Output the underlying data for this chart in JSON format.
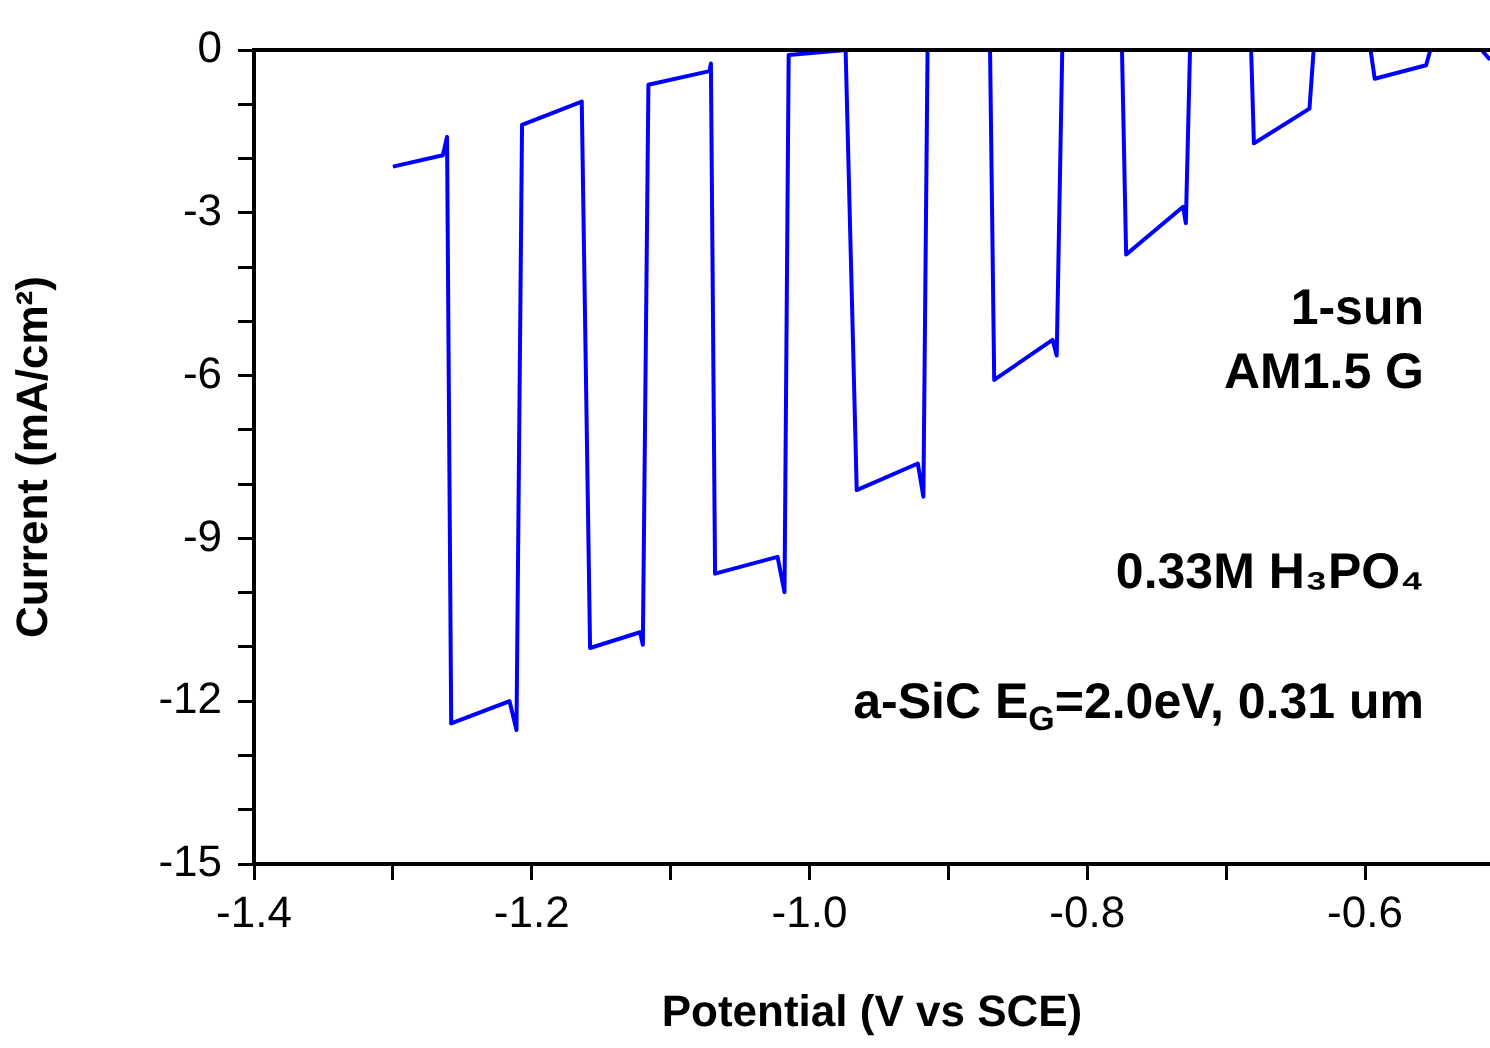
{
  "chart_data": {
    "type": "line",
    "xlabel": "Potential (V vs SCE)",
    "ylabel": "Current (mA/cm²)",
    "annotations": [
      "1-sun",
      "AM1.5 G",
      "0.33M H₃PO₄",
      "a-SiC E$_{G}$=2.0eV, 0.31 um"
    ],
    "series": [
      {
        "color": "#0000ff",
        "x": [
          -1.3,
          -1.264,
          -1.261,
          -1.258,
          -1.216,
          -1.211,
          -1.207,
          -1.164,
          -1.158,
          -1.122,
          -1.12,
          -1.116,
          -1.072,
          -1.071,
          -1.068,
          -1.023,
          -1.018,
          -1.015,
          -0.974,
          -0.966,
          -0.922,
          -0.918,
          -0.915,
          -0.87,
          -0.867,
          -0.825,
          -0.822,
          -0.818,
          -0.775,
          -0.772,
          -0.731,
          -0.729,
          -0.726,
          -0.682,
          -0.68,
          -0.64,
          -0.637,
          -0.596,
          -0.593,
          -0.556,
          -0.553,
          -0.516,
          -0.51
        ],
        "values": [
          -2.15,
          -1.94,
          -1.6,
          -12.41,
          -12.0,
          -12.53,
          -1.38,
          -0.95,
          -11.02,
          -10.73,
          -10.96,
          -0.64,
          -0.39,
          -0.25,
          -9.65,
          -9.34,
          -9.99,
          -0.09,
          0,
          -8.11,
          -7.62,
          -8.23,
          0,
          0,
          -6.08,
          -5.34,
          -5.63,
          0,
          0,
          -3.77,
          -2.89,
          -3.19,
          0,
          0,
          -1.72,
          -1.08,
          0,
          0,
          -0.53,
          -0.28,
          0,
          0,
          -0.18
        ]
      }
    ],
    "xlim": [
      -1.4,
      -0.51
    ],
    "xticks": [
      -1.4,
      {
        "value": -1.3,
        "label": null
      },
      -1.2,
      {
        "value": -1.1,
        "label": null
      },
      {
        "value": -1.0,
        "label": "-1.0"
      },
      {
        "value": -0.9,
        "label": null
      },
      -0.8,
      {
        "value": -0.7,
        "label": null
      },
      -0.6
    ],
    "ylim": [
      -15,
      0
    ],
    "yticks": [
      -15,
      {
        "value": -14,
        "label": null
      },
      {
        "value": -13,
        "label": null
      },
      -12,
      {
        "value": -11,
        "label": null
      },
      {
        "value": -10,
        "label": null
      },
      -9,
      {
        "value": -8,
        "label": null
      },
      {
        "value": -7,
        "label": null
      },
      -6,
      {
        "value": -5,
        "label": null
      },
      {
        "value": -4,
        "label": null
      },
      -3,
      {
        "value": -2,
        "label": null
      },
      {
        "value": -1,
        "label": null
      },
      0
    ],
    "grid": false,
    "legend": false,
    "marker": "none",
    "line_style": "solid"
  }
}
